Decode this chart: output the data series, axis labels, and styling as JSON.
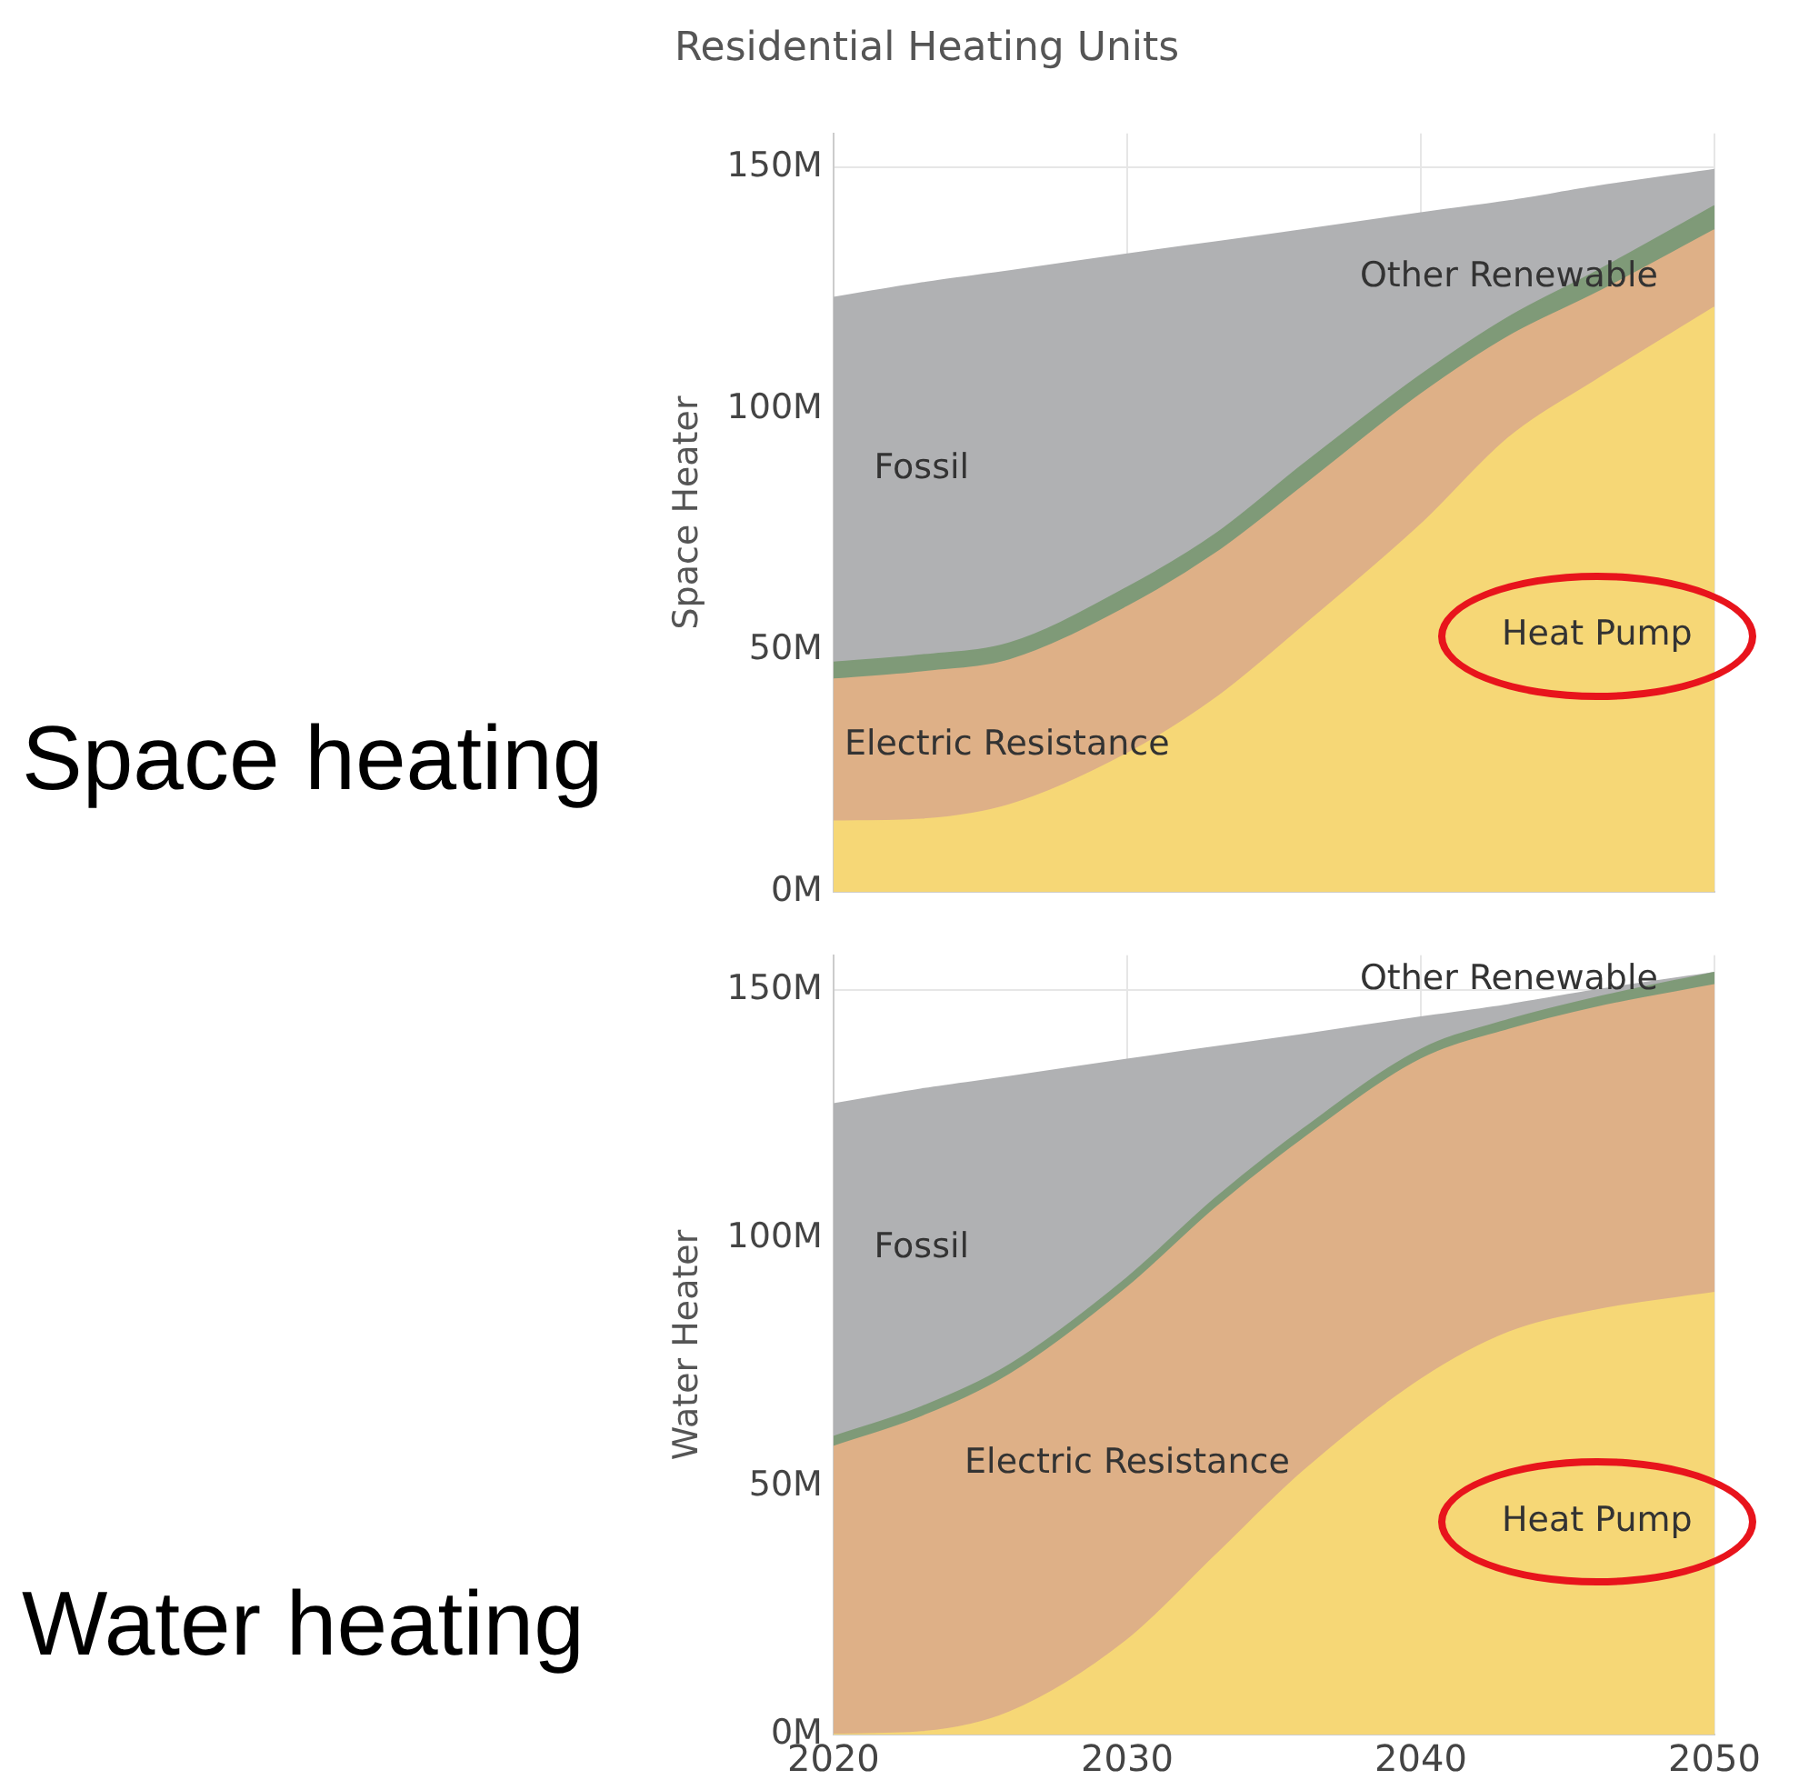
{
  "chart_data": [
    {
      "type": "area",
      "title": "Residential Heating Units",
      "ylabel": "Space Heater",
      "annotations": [
        "Space heating"
      ],
      "stacked": true,
      "x": [
        2020,
        2023,
        2026,
        2030,
        2033,
        2036,
        2040,
        2043,
        2046,
        2050
      ],
      "series": [
        {
          "name": "Heat Pump",
          "color": "#f6d776",
          "values": [
            14.6,
            15,
            18,
            28.6,
            40,
            55,
            76,
            94,
            106,
            121
          ]
        },
        {
          "name": "Electric Resistance",
          "color": "#deb087",
          "values": [
            29.4,
            30.5,
            30,
            30.4,
            30,
            29,
            27,
            21,
            18,
            16
          ]
        },
        {
          "name": "Other Renewable",
          "color": "#7f9a78",
          "values": [
            3.5,
            3.5,
            3.5,
            4,
            4,
            4.5,
            4,
            4,
            4.5,
            5
          ]
        },
        {
          "name": "Fossil",
          "color": "#b0b1b3",
          "values": [
            75.5,
            77,
            77,
            69,
            60.5,
            48.5,
            33.5,
            24,
            17.5,
            7.5
          ]
        }
      ],
      "xlim": [
        2020,
        2050
      ],
      "xticks": [
        2020,
        2030,
        2040,
        2050
      ],
      "ylim": [
        0,
        157
      ],
      "yticks": [
        {
          "value": 0,
          "label": "0M"
        },
        {
          "value": 50,
          "label": "50M"
        },
        {
          "value": 100,
          "label": "100M"
        },
        {
          "value": 150,
          "label": "150M"
        }
      ],
      "tick_labels": "y",
      "grid": true,
      "marker": "none"
    },
    {
      "type": "area",
      "ylabel": "Water Heater",
      "annotations": [
        "Water heating"
      ],
      "stacked": true,
      "x": [
        2020,
        2023,
        2026,
        2030,
        2033,
        2036,
        2040,
        2043,
        2046,
        2050
      ],
      "series": [
        {
          "name": "Heat Pump",
          "color": "#f6d776",
          "values": [
            0,
            0.5,
            4.5,
            19,
            36,
            53,
            71.5,
            81,
            85.5,
            89
          ]
        },
        {
          "name": "Electric Resistance",
          "color": "#deb087",
          "values": [
            58,
            63.5,
            68,
            71,
            70,
            67,
            64.5,
            61,
            61,
            62
          ]
        },
        {
          "name": "Other Renewable",
          "color": "#7f9a78",
          "values": [
            2,
            2,
            2,
            2,
            2,
            2,
            2,
            2,
            2,
            2.5
          ]
        },
        {
          "name": "Fossil",
          "color": "#b0b1b3",
          "values": [
            67,
            64,
            58,
            44,
            30.5,
            19,
            6.5,
            3,
            1.5,
            0
          ]
        }
      ],
      "xlim": [
        2020,
        2050
      ],
      "xticks": [
        2020,
        2030,
        2040,
        2050
      ],
      "ylim": [
        0,
        157
      ],
      "yticks": [
        {
          "value": 0,
          "label": "0M"
        },
        {
          "value": 50,
          "label": "50M"
        },
        {
          "value": 100,
          "label": "100M"
        },
        {
          "value": 150,
          "label": "150M"
        }
      ],
      "grid": true,
      "marker": "none"
    }
  ]
}
